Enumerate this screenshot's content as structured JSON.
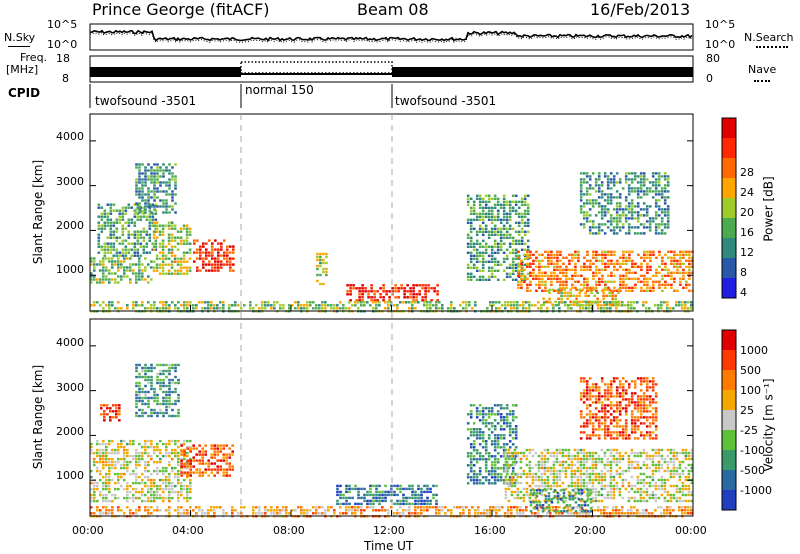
{
  "header": {
    "station": "Prince George (fitACF)",
    "beam": "Beam 08",
    "date": "16/Feb/2013"
  },
  "top_panel": {
    "left_label": "N.Sky",
    "right_label": "N.Search",
    "left_ticks": [
      "10^5",
      "10^0"
    ],
    "right_ticks": [
      "10^5",
      "10^0"
    ]
  },
  "freq_panel": {
    "left_label_line1": "Freq.",
    "left_label_line2": "[MHz]",
    "right_label": "Nave",
    "left_ticks": [
      "18",
      "8"
    ],
    "right_ticks": [
      "80",
      "0"
    ]
  },
  "cpid": {
    "label": "CPID",
    "segments": [
      {
        "name": "twofsound -3501",
        "start_hour": 0,
        "end_hour": 6
      },
      {
        "name": "normal 150",
        "start_hour": 6,
        "end_hour": 12
      },
      {
        "name": "twofsound -3501",
        "start_hour": 12,
        "end_hour": 24
      }
    ]
  },
  "chart_data": [
    {
      "type": "heatmap",
      "name": "power",
      "ylabel": "Slant Range [km]",
      "y_ticks": [
        "1000",
        "2000",
        "3000",
        "4000"
      ],
      "ylim": [
        200,
        4600
      ],
      "xlim": [
        0,
        24
      ],
      "colorbar_label": "Power [dB]",
      "colorbar_ticks": [
        "4",
        "8",
        "12",
        "16",
        "20",
        "24",
        "28"
      ],
      "colorbar_colors": [
        "#1f1fe0",
        "#2a58a8",
        "#2f8a7c",
        "#4cab50",
        "#9ecb2a",
        "#ffa500",
        "#ff6a00",
        "#ff2800",
        "#e00000"
      ],
      "regions": [
        {
          "hours": [
            0.0,
            2.5
          ],
          "range_km": [
            850,
            1400
          ],
          "level": 0.45
        },
        {
          "hours": [
            0.3,
            2.6
          ],
          "range_km": [
            1400,
            2600
          ],
          "level": 0.35
        },
        {
          "hours": [
            1.8,
            3.4
          ],
          "range_km": [
            2400,
            3500
          ],
          "level": 0.3
        },
        {
          "hours": [
            2.5,
            4.0
          ],
          "range_km": [
            1000,
            2200
          ],
          "level": 0.5
        },
        {
          "hours": [
            4.1,
            5.7
          ],
          "range_km": [
            1100,
            1800
          ],
          "level": 0.85
        },
        {
          "hours": [
            9.0,
            9.4
          ],
          "range_km": [
            800,
            1500
          ],
          "level": 0.5
        },
        {
          "hours": [
            10.2,
            13.8
          ],
          "range_km": [
            450,
            800
          ],
          "level": 0.9
        },
        {
          "hours": [
            0.0,
            24.0
          ],
          "range_km": [
            200,
            420
          ],
          "level": 0.45
        },
        {
          "hours": [
            15.0,
            17.5
          ],
          "range_km": [
            900,
            2800
          ],
          "level": 0.35
        },
        {
          "hours": [
            17.0,
            24.0
          ],
          "range_km": [
            650,
            1550
          ],
          "level": 0.7
        },
        {
          "hours": [
            18.0,
            21.0
          ],
          "range_km": [
            350,
            700
          ],
          "level": 0.6
        },
        {
          "hours": [
            19.5,
            23.0
          ],
          "range_km": [
            1900,
            3300
          ],
          "level": 0.3
        }
      ]
    },
    {
      "type": "heatmap",
      "name": "velocity",
      "ylabel": "Slant Range [km]",
      "y_ticks": [
        "1000",
        "2000",
        "3000",
        "4000"
      ],
      "ylim": [
        200,
        4600
      ],
      "xlim": [
        0,
        24
      ],
      "x_ticks": [
        "00:00",
        "04:00",
        "08:00",
        "12:00",
        "16:00",
        "20:00",
        "00:00"
      ],
      "xlabel": "Time UT",
      "colorbar_label": "Velocity [m s⁻¹]",
      "colorbar_ticks": [
        "1000",
        "500",
        "100",
        "25",
        "-25",
        "-100",
        "-500",
        "-1000"
      ],
      "colorbar_colors": [
        "#1f3fbf",
        "#2b6aa0",
        "#3a9a6a",
        "#5fc03a",
        "#c8c8c8",
        "#f5a800",
        "#ff7a00",
        "#ff3a00",
        "#e00000"
      ],
      "regions": [
        {
          "hours": [
            0.0,
            4.0
          ],
          "range_km": [
            550,
            1900
          ],
          "level": 0.5
        },
        {
          "hours": [
            0.4,
            1.2
          ],
          "range_km": [
            2300,
            2700
          ],
          "level": 0.85
        },
        {
          "hours": [
            1.8,
            3.5
          ],
          "range_km": [
            2400,
            3600
          ],
          "level": 0.3
        },
        {
          "hours": [
            3.6,
            5.7
          ],
          "range_km": [
            1100,
            1800
          ],
          "level": 0.8
        },
        {
          "hours": [
            9.8,
            13.8
          ],
          "range_km": [
            450,
            900
          ],
          "level": 0.2
        },
        {
          "hours": [
            0.0,
            24.0
          ],
          "range_km": [
            200,
            420
          ],
          "level": 0.65
        },
        {
          "hours": [
            15.0,
            17.0
          ],
          "range_km": [
            900,
            2700
          ],
          "level": 0.25
        },
        {
          "hours": [
            16.5,
            24.0
          ],
          "range_km": [
            500,
            1700
          ],
          "level": 0.5
        },
        {
          "hours": [
            17.5,
            20.0
          ],
          "range_km": [
            300,
            800
          ],
          "level": 0.25
        },
        {
          "hours": [
            19.5,
            22.5
          ],
          "range_km": [
            1900,
            3300
          ],
          "level": 0.8
        }
      ]
    }
  ]
}
